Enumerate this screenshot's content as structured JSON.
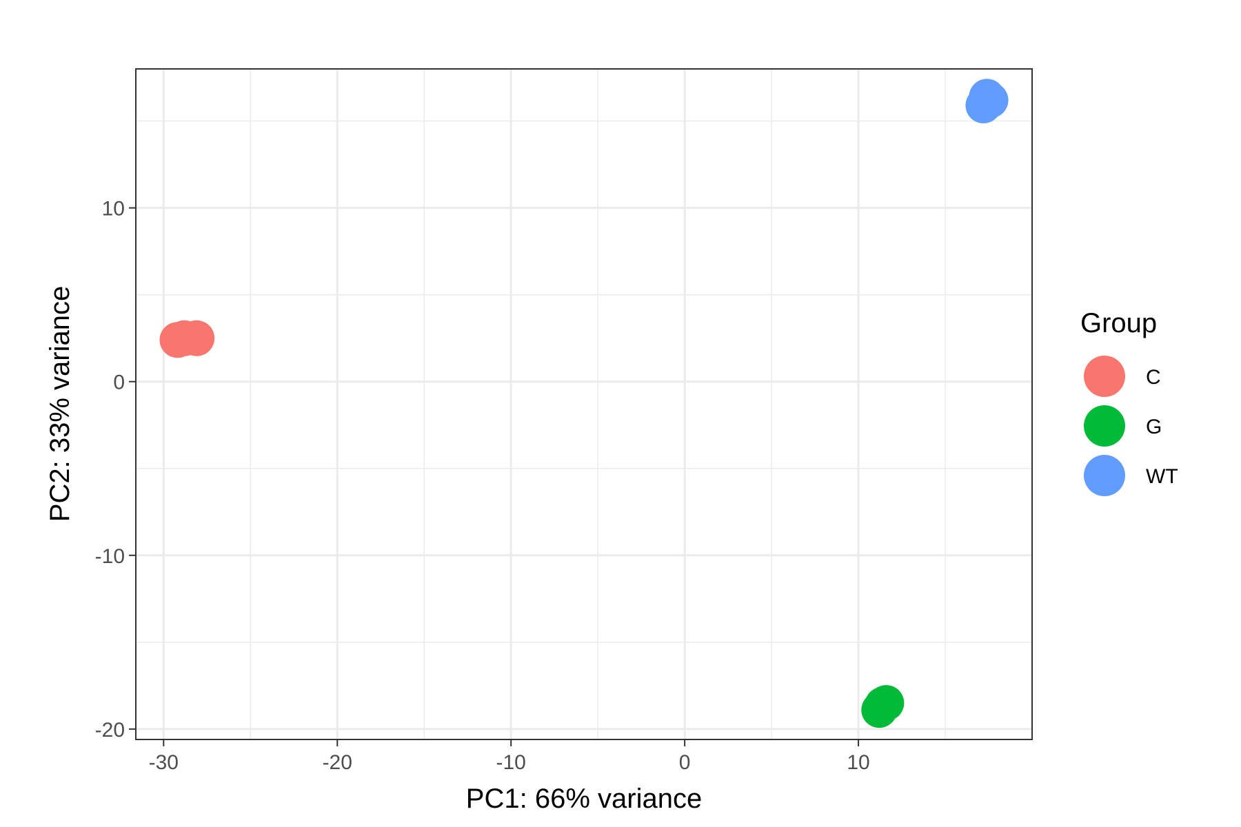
{
  "chart_data": {
    "type": "scatter",
    "xlabel": "PC1: 66% variance",
    "ylabel": "PC2: 33% variance",
    "xlim": [
      -31.6,
      20.0
    ],
    "ylim": [
      -20.6,
      18.0
    ],
    "x_ticks": [
      -30,
      -20,
      -10,
      0,
      10
    ],
    "y_ticks": [
      -20,
      -10,
      0,
      10
    ],
    "x_tick_labels": [
      "-30",
      "-20",
      "-10",
      "0",
      "10"
    ],
    "y_tick_labels": [
      "-20",
      "-10",
      "0",
      "10"
    ],
    "grid": true,
    "legend": {
      "title": "Group",
      "placement": "right"
    },
    "series": [
      {
        "name": "C",
        "color": "#F8766D",
        "points": [
          {
            "x": -29.2,
            "y": 2.4
          },
          {
            "x": -28.8,
            "y": 2.5
          },
          {
            "x": -28.1,
            "y": 2.5
          }
        ]
      },
      {
        "name": "G",
        "color": "#00BA38",
        "points": [
          {
            "x": 11.2,
            "y": -18.9
          },
          {
            "x": 11.4,
            "y": -18.6
          },
          {
            "x": 11.6,
            "y": -18.5
          }
        ]
      },
      {
        "name": "WT",
        "color": "#619CFF",
        "points": [
          {
            "x": 17.2,
            "y": 15.9
          },
          {
            "x": 17.4,
            "y": 16.4
          },
          {
            "x": 17.6,
            "y": 16.2
          }
        ]
      }
    ]
  }
}
